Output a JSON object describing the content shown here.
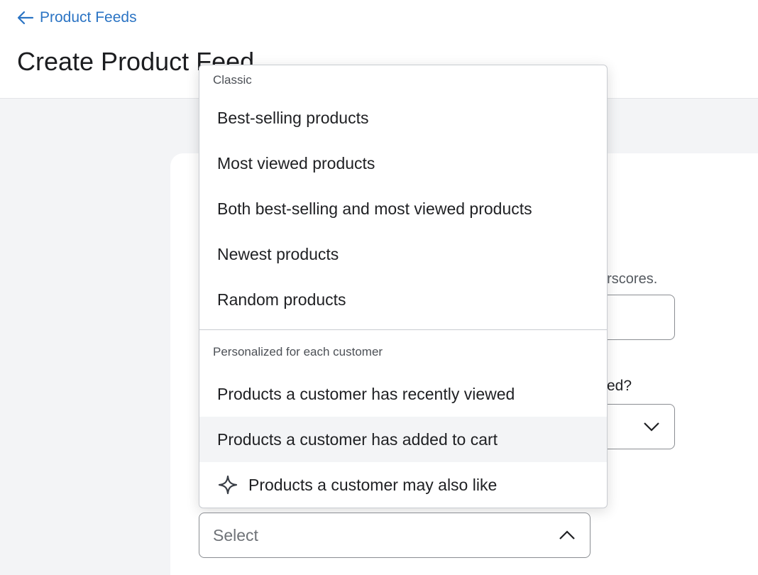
{
  "header": {
    "back_label": "Product Feeds",
    "title": "Create Product Feed"
  },
  "form": {
    "help_fragment": "erscores.",
    "question_fragment": "ed?",
    "feed_type_select": {
      "placeholder": "Select",
      "expanded": true
    }
  },
  "dropdown": {
    "groups": [
      {
        "label": "Classic",
        "items": [
          {
            "label": "Best-selling products"
          },
          {
            "label": "Most viewed products"
          },
          {
            "label": "Both best-selling and most viewed products"
          },
          {
            "label": "Newest products"
          },
          {
            "label": "Random products"
          }
        ]
      },
      {
        "label": "Personalized for each customer",
        "items": [
          {
            "label": "Products a customer has recently viewed"
          },
          {
            "label": "Products a customer has added to cart",
            "hovered": true
          },
          {
            "label": "Products a customer may also like",
            "icon": "sparkle-icon"
          }
        ]
      }
    ]
  },
  "colors": {
    "link": "#2b74c4",
    "background": "#f3f4f6",
    "hover": "#f3f4f6"
  }
}
